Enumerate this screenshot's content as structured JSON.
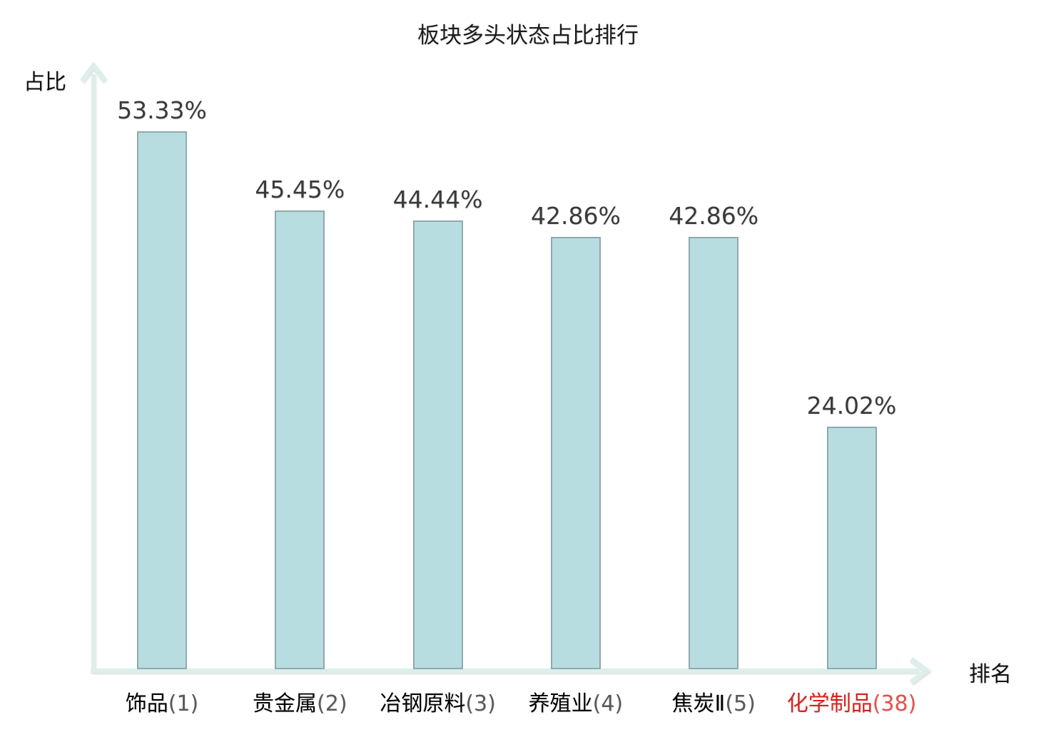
{
  "chart_data": {
    "type": "bar",
    "title": "板块多头状态占比排行",
    "ylabel": "占比",
    "xlabel": "排名",
    "grid": false,
    "legend": "none",
    "ylim": [
      0,
      60
    ],
    "categories": [
      "饰品(1)",
      "贵金属(2)",
      "冶钢原料(3)",
      "养殖业(4)",
      "焦炭Ⅱ(5)",
      "化学制品(38)"
    ],
    "values": [
      53.33,
      45.45,
      44.44,
      42.86,
      42.86,
      24.02
    ],
    "bars": [
      {
        "name": "饰品",
        "rank_label": "(1)",
        "value": 53.33,
        "value_label": "53.33%",
        "highlight": false
      },
      {
        "name": "贵金属",
        "rank_label": "(2)",
        "value": 45.45,
        "value_label": "45.45%",
        "highlight": false
      },
      {
        "name": "冶钢原料",
        "rank_label": "(3)",
        "value": 44.44,
        "value_label": "44.44%",
        "highlight": false
      },
      {
        "name": "养殖业",
        "rank_label": "(4)",
        "value": 42.86,
        "value_label": "42.86%",
        "highlight": false
      },
      {
        "name": "焦炭Ⅱ",
        "rank_label": "(5)",
        "value": 42.86,
        "value_label": "42.86%",
        "highlight": false
      },
      {
        "name": "化学制品",
        "rank_label": "(38)",
        "value": 24.02,
        "value_label": "24.02%",
        "highlight": true
      }
    ],
    "colors": {
      "background": "#ffffff",
      "bar_fill": "#b8dde1",
      "bar_border": "#8fa9ad",
      "axis": "#dcefeb",
      "value_label": "#3a3a3a",
      "category_name": "#000000",
      "category_rank": "#595959",
      "highlight_name": "#d8221d",
      "highlight_rank": "#e4524e"
    }
  }
}
